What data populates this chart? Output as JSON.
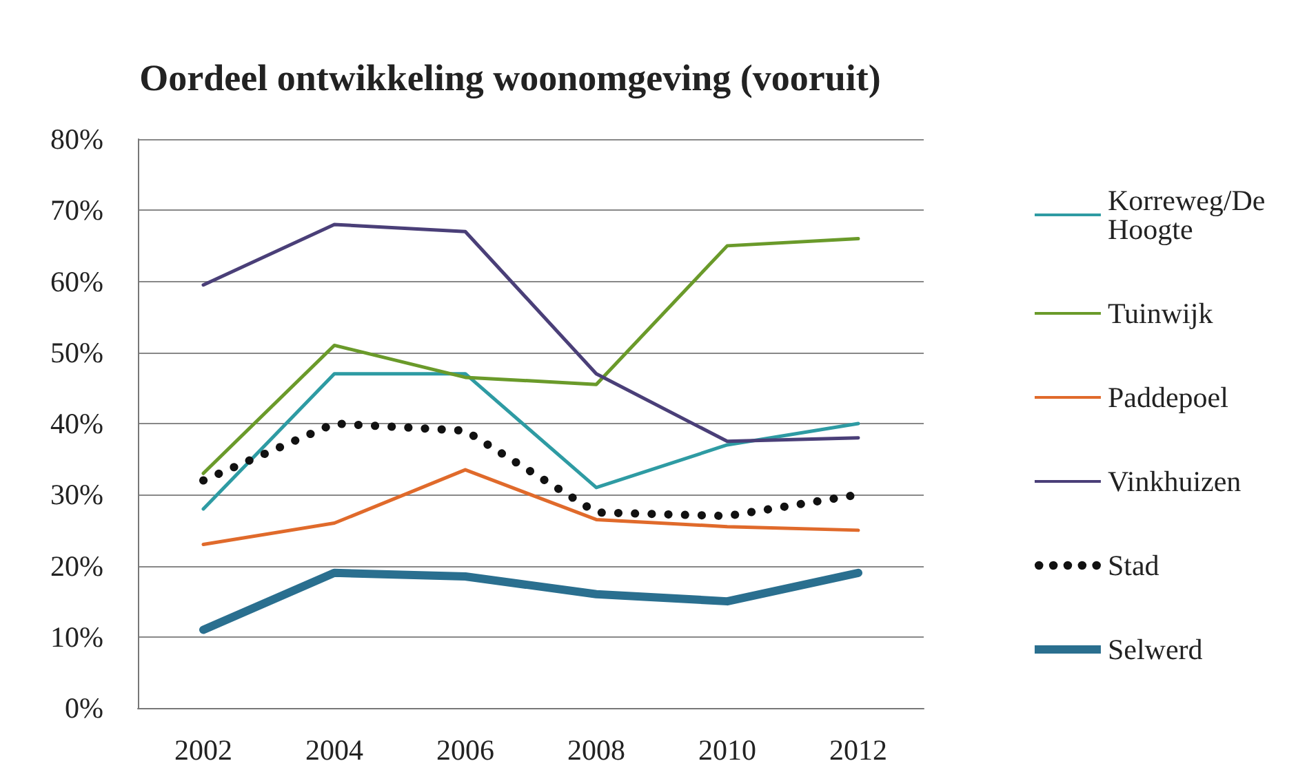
{
  "chart_data": {
    "type": "line",
    "title": "Oordeel ontwikkeling woonomgeving (vooruit)",
    "categories": [
      "2002",
      "2004",
      "2006",
      "2008",
      "2010",
      "2012"
    ],
    "series": [
      {
        "name": "Korreweg/De Hoogte",
        "color": "#2e9ba3",
        "values": [
          28,
          47,
          47,
          31,
          37,
          40
        ]
      },
      {
        "name": "Tuinwijk",
        "color": "#6a9a2a",
        "values": [
          33,
          51,
          46.5,
          45.5,
          65,
          66
        ]
      },
      {
        "name": "Paddepoel",
        "color": "#e06a2b",
        "values": [
          23,
          26,
          33.5,
          26.5,
          25.5,
          25
        ]
      },
      {
        "name": "Vinkhuizen",
        "color": "#4a3f78",
        "values": [
          59.5,
          68,
          67,
          47,
          37.5,
          38
        ]
      },
      {
        "name": "Stad",
        "color": "#111111",
        "line_style": "dotted",
        "values": [
          32,
          40,
          39,
          27.5,
          27,
          30
        ]
      },
      {
        "name": "Selwerd",
        "color": "#2a6f8f",
        "values": [
          11,
          19,
          18.5,
          16,
          15,
          19
        ]
      }
    ],
    "ylim": [
      0,
      80
    ],
    "yticks": [
      {
        "value": 0,
        "label": "0%"
      },
      {
        "value": 10,
        "label": "10%"
      },
      {
        "value": 20,
        "label": "20%"
      },
      {
        "value": 30,
        "label": "30%"
      },
      {
        "value": 40,
        "label": "40%"
      },
      {
        "value": 50,
        "label": "50%"
      },
      {
        "value": 60,
        "label": "60%"
      },
      {
        "value": 70,
        "label": "70%"
      },
      {
        "value": 80,
        "label": "80%"
      }
    ],
    "grid": "y",
    "legend": "right",
    "marker": "none"
  }
}
